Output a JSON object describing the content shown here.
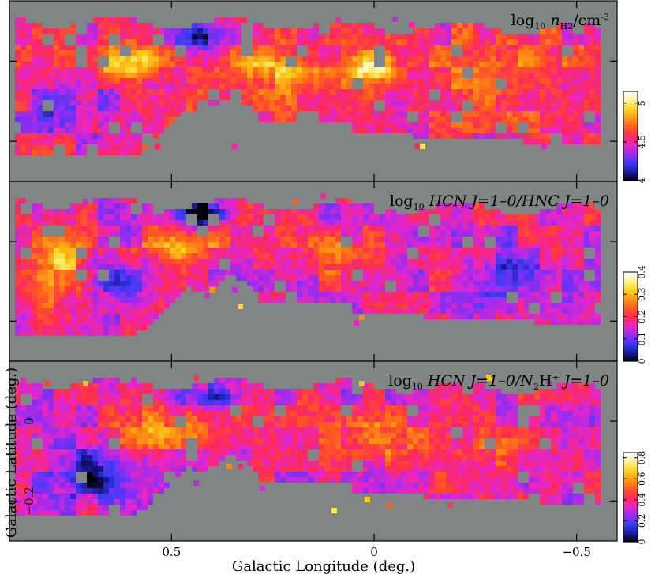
{
  "chart_data": {
    "type": "heatmap",
    "layout": "three vertically stacked map panels sharing a longitude axis, each with its own colorbar",
    "xlabel": "Galactic Longitude (deg.)",
    "ylabel": "Galactic Latitude (deg.)",
    "xlim": [
      0.9,
      -0.6
    ],
    "ylim": [
      -0.3,
      0.15
    ],
    "x_ticks": [
      0.5,
      0,
      -0.5
    ],
    "x_tick_labels": [
      "0.5",
      "0",
      "−0.5"
    ],
    "y_ticks": [
      0,
      -0.2
    ],
    "y_tick_labels": [
      "0",
      "−0.2"
    ],
    "background_color": "#808585",
    "colormap": [
      "#000000",
      "#1a1aa0",
      "#3a3af5",
      "#9a2cf0",
      "#e627c8",
      "#ff2a55",
      "#ff5a20",
      "#ff9a10",
      "#ffd21e",
      "#fff28a",
      "#ffffff"
    ],
    "panels": [
      {
        "label_prefix": "log",
        "label_sub": "10",
        "label_main": " n",
        "label_main_sub": "H2",
        "label_tail": "/cm",
        "label_tail_sup": "-3",
        "colorbar": {
          "min": 4,
          "max": 5.15,
          "ticks": [
            4,
            4.5,
            5
          ],
          "tick_labels": [
            "4",
            "4.5",
            "5"
          ]
        },
        "field": {
          "base": 4.55,
          "left_plume": [
            0.75,
            -0.12,
            0.12,
            0.09,
            -0.25
          ],
          "hotspots": [
            [
              0.6,
              0.0,
              0.08,
              0.04,
              0.5
            ],
            [
              0.25,
              -0.02,
              0.12,
              0.05,
              0.35
            ],
            [
              0.0,
              -0.015,
              0.06,
              0.04,
              0.55
            ],
            [
              -0.3,
              -0.05,
              0.15,
              0.08,
              0.2
            ],
            [
              0.42,
              0.06,
              0.08,
              0.03,
              -0.35
            ]
          ]
        }
      },
      {
        "label_prefix": "log",
        "label_sub": "10",
        "label_main": " HCN J=1–0/HNC J=1–0",
        "colorbar": {
          "min": 0,
          "max": 0.4,
          "ticks": [
            0,
            0.1,
            0.2,
            0.3,
            0.4
          ],
          "tick_labels": [
            "0",
            "0.1",
            "0.2",
            "0.3",
            "0.4"
          ]
        },
        "field": {
          "base": 0.17,
          "left_plume": [
            0.78,
            -0.06,
            0.08,
            0.12,
            0.12
          ],
          "hotspots": [
            [
              0.48,
              -0.02,
              0.1,
              0.04,
              0.12
            ],
            [
              0.1,
              -0.03,
              0.12,
              0.05,
              0.1
            ],
            [
              0.42,
              0.07,
              0.06,
              0.03,
              -0.2
            ],
            [
              -0.35,
              -0.08,
              0.12,
              0.06,
              -0.1
            ],
            [
              0.62,
              -0.1,
              0.08,
              0.06,
              -0.12
            ]
          ]
        }
      },
      {
        "label_prefix": "log",
        "label_sub": "10",
        "label_main": " HCN J=1–0/N",
        "label_main_sub": "2",
        "label_tail": "H",
        "label_tail_sup": "+",
        "label_end": " J=1–0",
        "colorbar": {
          "min": 0,
          "max": 0.85,
          "ticks": [
            0,
            0.2,
            0.4,
            0.6,
            0.8
          ],
          "tick_labels": [
            "0",
            "0.2",
            "0.4",
            "0.6",
            "0.8"
          ]
        },
        "field": {
          "base": 0.36,
          "left_plume": [
            0.75,
            -0.11,
            0.1,
            0.09,
            -0.15
          ],
          "hotspots": [
            [
              0.55,
              -0.02,
              0.12,
              0.05,
              0.2
            ],
            [
              0.0,
              -0.04,
              0.1,
              0.05,
              0.25
            ],
            [
              -0.25,
              -0.06,
              0.1,
              0.05,
              0.12
            ],
            [
              0.42,
              0.06,
              0.07,
              0.03,
              -0.25
            ],
            [
              0.68,
              -0.15,
              0.06,
              0.05,
              -0.2
            ]
          ]
        }
      }
    ]
  }
}
